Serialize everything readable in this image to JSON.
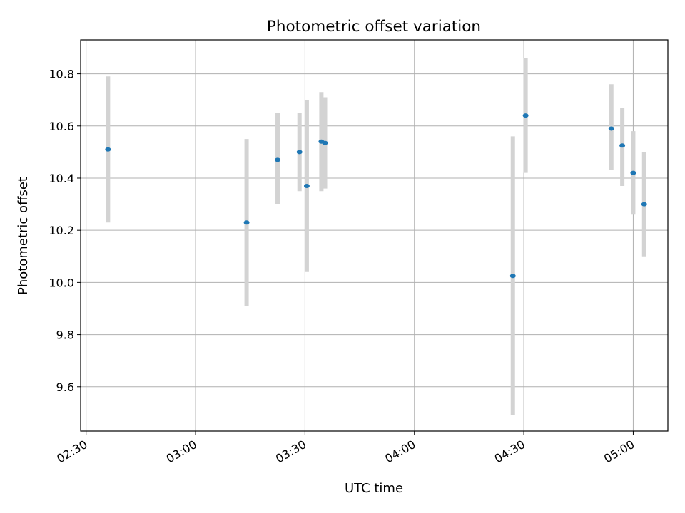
{
  "chart_data": {
    "type": "scatter",
    "title": "Photometric offset variation",
    "xlabel": "UTC time",
    "ylabel": "Photometric offset",
    "x_ticks": [
      "02:30",
      "03:00",
      "03:30",
      "04:00",
      "04:30",
      "05:00"
    ],
    "y_ticks": [
      "9.6",
      "9.8",
      "10.0",
      "10.2",
      "10.4",
      "10.6",
      "10.8"
    ],
    "xlim": [
      "02:28:30",
      "05:09:30"
    ],
    "ylim": [
      9.43,
      10.93
    ],
    "grid": true,
    "colors": {
      "point": "#1f77b4",
      "errorbar": "#d3d3d3"
    },
    "points": [
      {
        "x": "02:36:00",
        "y": 10.51,
        "ylo": 10.23,
        "yhi": 10.79
      },
      {
        "x": "03:14:00",
        "y": 10.23,
        "ylo": 9.91,
        "yhi": 10.55
      },
      {
        "x": "03:22:30",
        "y": 10.47,
        "ylo": 10.3,
        "yhi": 10.65
      },
      {
        "x": "03:28:30",
        "y": 10.5,
        "ylo": 10.35,
        "yhi": 10.65
      },
      {
        "x": "03:30:30",
        "y": 10.37,
        "ylo": 10.04,
        "yhi": 10.7
      },
      {
        "x": "03:34:30",
        "y": 10.54,
        "ylo": 10.35,
        "yhi": 10.73
      },
      {
        "x": "03:35:30",
        "y": 10.535,
        "ylo": 10.36,
        "yhi": 10.71
      },
      {
        "x": "04:27:00",
        "y": 10.025,
        "ylo": 9.49,
        "yhi": 10.56
      },
      {
        "x": "04:30:30",
        "y": 10.64,
        "ylo": 10.42,
        "yhi": 10.86
      },
      {
        "x": "04:54:00",
        "y": 10.59,
        "ylo": 10.43,
        "yhi": 10.76
      },
      {
        "x": "04:57:00",
        "y": 10.525,
        "ylo": 10.37,
        "yhi": 10.67
      },
      {
        "x": "05:00:00",
        "y": 10.42,
        "ylo": 10.26,
        "yhi": 10.58
      },
      {
        "x": "05:03:00",
        "y": 10.3,
        "ylo": 10.1,
        "yhi": 10.5
      }
    ]
  }
}
